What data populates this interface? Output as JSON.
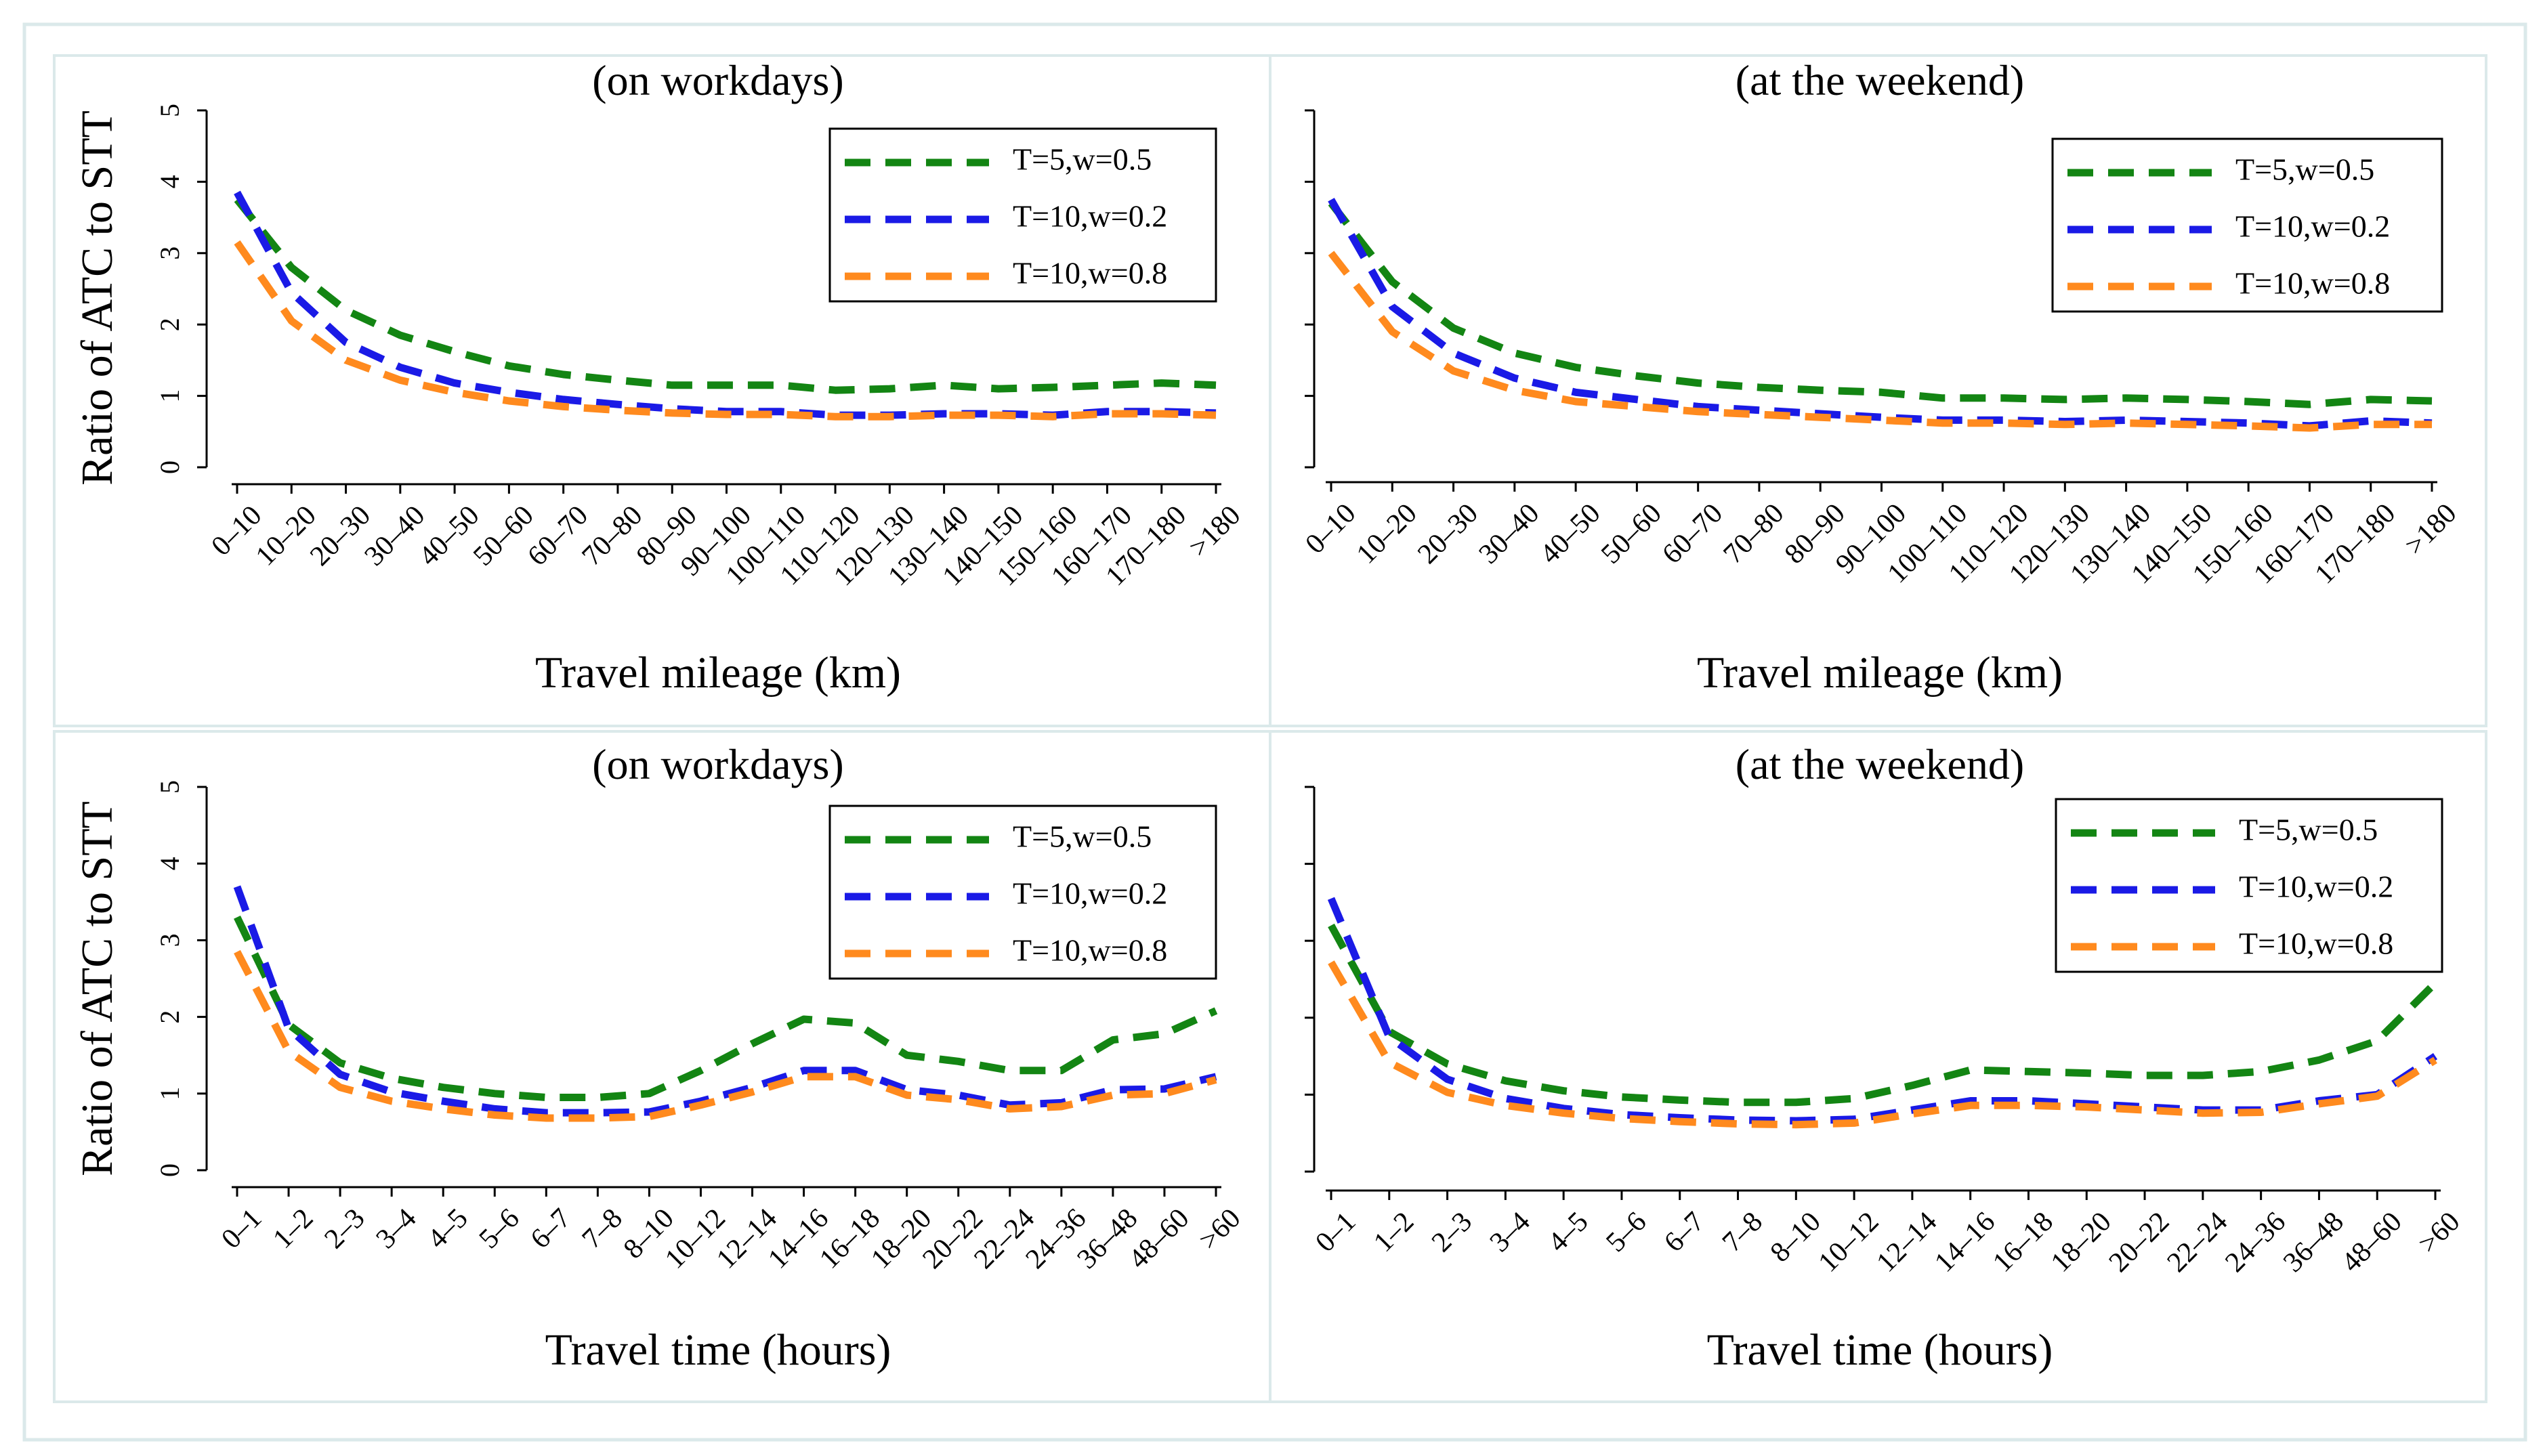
{
  "colors": {
    "background": "#ffffff",
    "panel_border": "#dbe9ea",
    "outer_border": "#dbe9ea",
    "axis": "#000000",
    "legend_border": "#000000"
  },
  "chart_data": [
    {
      "type": "line",
      "title": "(on workdays)",
      "xlabel": "Travel mileage (km)",
      "ylabel": "Ratio of ATC to STT",
      "ylim": [
        0,
        5
      ],
      "yticks": [
        "0",
        "1",
        "2",
        "3",
        "4",
        "5"
      ],
      "grid": false,
      "legend_position": "top-right",
      "categories": [
        "0–10",
        "10–20",
        "20–30",
        "30–40",
        "40–50",
        "50–60",
        "60–70",
        "70–80",
        "80–90",
        "90–100",
        "100–110",
        "110–120",
        "120–130",
        "130–140",
        "140–150",
        "150–160",
        "160–170",
        "170–180",
        ">180"
      ],
      "series": [
        {
          "name": "T=5,w=0.5",
          "color": "#138513",
          "values": [
            3.75,
            2.8,
            2.2,
            1.85,
            1.62,
            1.42,
            1.3,
            1.22,
            1.15,
            1.15,
            1.15,
            1.08,
            1.1,
            1.15,
            1.1,
            1.12,
            1.15,
            1.18,
            1.15
          ]
        },
        {
          "name": "T=10,w=0.2",
          "color": "#1a1ae6",
          "values": [
            3.85,
            2.45,
            1.75,
            1.4,
            1.18,
            1.05,
            0.95,
            0.88,
            0.82,
            0.78,
            0.78,
            0.73,
            0.73,
            0.75,
            0.75,
            0.73,
            0.78,
            0.78,
            0.76
          ]
        },
        {
          "name": "T=10,w=0.8",
          "color": "#ff8a1e",
          "values": [
            3.15,
            2.05,
            1.5,
            1.22,
            1.05,
            0.93,
            0.85,
            0.8,
            0.76,
            0.74,
            0.74,
            0.71,
            0.71,
            0.73,
            0.73,
            0.71,
            0.75,
            0.75,
            0.73
          ]
        }
      ]
    },
    {
      "type": "line",
      "title": "(at the weekend)",
      "xlabel": "Travel mileage (km)",
      "ylabel": "",
      "ylim": [
        0,
        5
      ],
      "yticks": [],
      "grid": false,
      "legend_position": "top-right",
      "categories": [
        "0–10",
        "10–20",
        "20–30",
        "30–40",
        "40–50",
        "50–60",
        "60–70",
        "70–80",
        "80–90",
        "90–100",
        "100–110",
        "110–120",
        "120–130",
        "130–140",
        "140–150",
        "150–160",
        "160–170",
        "170–180",
        ">180"
      ],
      "series": [
        {
          "name": "T=5,w=0.5",
          "color": "#138513",
          "values": [
            3.7,
            2.6,
            1.95,
            1.6,
            1.4,
            1.28,
            1.18,
            1.12,
            1.08,
            1.05,
            0.97,
            0.97,
            0.95,
            0.97,
            0.95,
            0.92,
            0.88,
            0.95,
            0.93
          ]
        },
        {
          "name": "T=10,w=0.2",
          "color": "#1a1ae6",
          "values": [
            3.75,
            2.25,
            1.6,
            1.25,
            1.05,
            0.95,
            0.85,
            0.8,
            0.75,
            0.7,
            0.66,
            0.66,
            0.64,
            0.66,
            0.64,
            0.62,
            0.58,
            0.65,
            0.62
          ]
        },
        {
          "name": "T=10,w=0.8",
          "color": "#ff8a1e",
          "values": [
            3.0,
            1.9,
            1.35,
            1.08,
            0.92,
            0.85,
            0.78,
            0.74,
            0.7,
            0.66,
            0.62,
            0.62,
            0.6,
            0.62,
            0.6,
            0.58,
            0.55,
            0.6,
            0.6
          ]
        }
      ]
    },
    {
      "type": "line",
      "title": "(on workdays)",
      "xlabel": "Travel time (hours)",
      "ylabel": "Ratio of ATC to STT",
      "ylim": [
        0,
        5
      ],
      "yticks": [
        "0",
        "1",
        "2",
        "3",
        "4",
        "5"
      ],
      "grid": false,
      "legend_position": "top-right",
      "categories": [
        "0–1",
        "1–2",
        "2–3",
        "3–4",
        "4–5",
        "5–6",
        "6–7",
        "7–8",
        "8–10",
        "10–12",
        "12–14",
        "14–16",
        "16–18",
        "18–20",
        "20–22",
        "22–24",
        "24–36",
        "36–48",
        "48–60",
        ">60"
      ],
      "series": [
        {
          "name": "T=5,w=0.5",
          "color": "#138513",
          "values": [
            3.3,
            1.9,
            1.4,
            1.2,
            1.08,
            1.0,
            0.95,
            0.95,
            1.0,
            1.3,
            1.65,
            1.97,
            1.92,
            1.5,
            1.42,
            1.3,
            1.3,
            1.7,
            1.78,
            2.08
          ]
        },
        {
          "name": "T=10,w=0.2",
          "color": "#1a1ae6",
          "values": [
            3.7,
            1.85,
            1.25,
            1.02,
            0.9,
            0.8,
            0.75,
            0.75,
            0.76,
            0.9,
            1.08,
            1.3,
            1.3,
            1.05,
            0.98,
            0.85,
            0.88,
            1.05,
            1.06,
            1.22
          ]
        },
        {
          "name": "T=10,w=0.8",
          "color": "#ff8a1e",
          "values": [
            2.85,
            1.55,
            1.08,
            0.9,
            0.8,
            0.72,
            0.68,
            0.68,
            0.7,
            0.85,
            1.02,
            1.22,
            1.22,
            0.98,
            0.92,
            0.8,
            0.83,
            0.98,
            1.0,
            1.18
          ]
        }
      ]
    },
    {
      "type": "line",
      "title": "(at the weekend)",
      "xlabel": "Travel time (hours)",
      "ylabel": "",
      "ylim": [
        0,
        5
      ],
      "yticks": [],
      "grid": false,
      "legend_position": "top-right",
      "categories": [
        "0–1",
        "1–2",
        "2–3",
        "3–4",
        "4–5",
        "5–6",
        "6–7",
        "7–8",
        "8–10",
        "10–12",
        "12–14",
        "14–16",
        "16–18",
        "18–20",
        "20–22",
        "22–24",
        "24–36",
        "36–48",
        "48–60",
        ">60"
      ],
      "series": [
        {
          "name": "T=5,w=0.5",
          "color": "#138513",
          "values": [
            3.2,
            1.82,
            1.4,
            1.18,
            1.05,
            0.97,
            0.93,
            0.9,
            0.9,
            0.95,
            1.12,
            1.32,
            1.3,
            1.28,
            1.25,
            1.25,
            1.3,
            1.45,
            1.7,
            2.45
          ]
        },
        {
          "name": "T=10,w=0.2",
          "color": "#1a1ae6",
          "values": [
            3.55,
            1.75,
            1.2,
            0.95,
            0.82,
            0.74,
            0.7,
            0.67,
            0.66,
            0.68,
            0.8,
            0.92,
            0.92,
            0.88,
            0.84,
            0.8,
            0.8,
            0.92,
            1.0,
            1.5
          ]
        },
        {
          "name": "T=10,w=0.8",
          "color": "#ff8a1e",
          "values": [
            2.72,
            1.42,
            1.03,
            0.86,
            0.76,
            0.69,
            0.65,
            0.62,
            0.61,
            0.63,
            0.75,
            0.86,
            0.86,
            0.84,
            0.8,
            0.76,
            0.77,
            0.88,
            0.98,
            1.45
          ]
        }
      ]
    }
  ]
}
